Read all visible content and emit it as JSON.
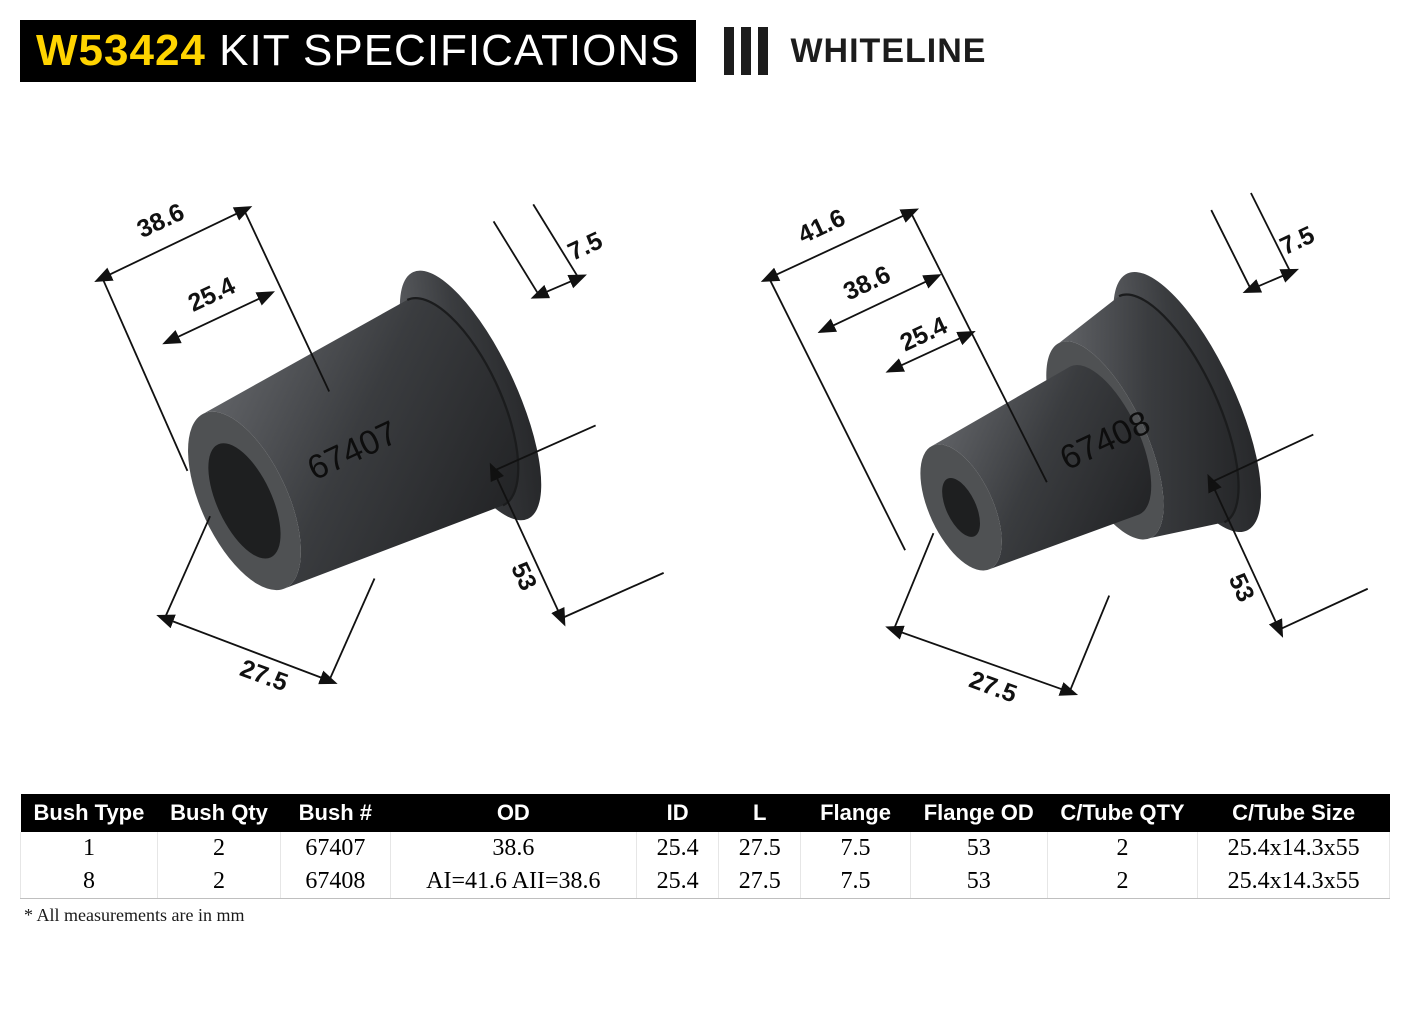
{
  "header": {
    "part_number": "W53424",
    "title_suffix": " KIT SPECIFICATIONS",
    "brand_name": "WHITELINE"
  },
  "colors": {
    "background": "#ffffff",
    "title_bg": "#000000",
    "title_text": "#ffffff",
    "accent_yellow": "#ffd400",
    "brand_text": "#1c1c1c",
    "table_header_bg": "#000000",
    "table_header_text": "#ffffff",
    "table_border": "#bfbfbf",
    "cell_divider": "#e6e6e6",
    "dim_line": "#111111",
    "bushing_dark": "#2d2e30",
    "bushing_light": "#64666a",
    "bushing_face": "#4f5153",
    "bushing_hole": "#1e1f20"
  },
  "diagrams": [
    {
      "part_id": "67407",
      "dimensions": {
        "od": "38.6",
        "id": "25.4",
        "length": "27.5",
        "flange": "7.5",
        "flange_od": "53"
      }
    },
    {
      "part_id": "67408",
      "dimensions": {
        "od_outer": "41.6",
        "od_inner": "38.6",
        "id": "25.4",
        "length": "27.5",
        "flange": "7.5",
        "flange_od": "53"
      }
    }
  ],
  "table": {
    "columns": [
      "Bush Type",
      "Bush Qty",
      "Bush #",
      "OD",
      "ID",
      "L",
      "Flange",
      "Flange OD",
      "C/Tube QTY",
      "C/Tube Size"
    ],
    "col_widths": [
      "10%",
      "9%",
      "8%",
      "18%",
      "6%",
      "6%",
      "8%",
      "10%",
      "11%",
      "14%"
    ],
    "rows": [
      [
        "1",
        "2",
        "67407",
        "38.6",
        "25.4",
        "27.5",
        "7.5",
        "53",
        "2",
        "25.4x14.3x55"
      ],
      [
        "8",
        "2",
        "67408",
        "AI=41.6 AII=38.6",
        "25.4",
        "27.5",
        "7.5",
        "53",
        "2",
        "25.4x14.3x55"
      ]
    ]
  },
  "footnote": "* All measurements are in mm"
}
